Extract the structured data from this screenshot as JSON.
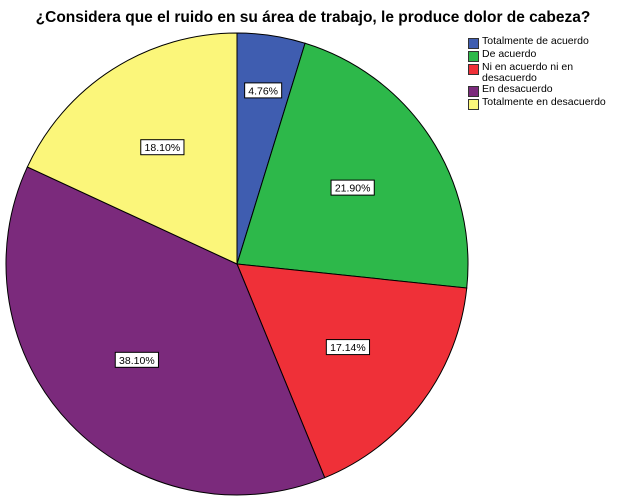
{
  "chart_data": {
    "type": "pie",
    "title": "¿Considera que el ruido en su área de trabajo, le produce dolor de cabeza?",
    "categories": [
      "Totalmente de acuerdo",
      "De acuerdo",
      "Ni en acuerdo ni en desacuerdo",
      "En desacuerdo",
      "Totalmente en desacuerdo"
    ],
    "values": [
      4.76,
      21.9,
      17.14,
      38.1,
      18.1
    ],
    "value_labels": [
      "4.76%",
      "21.90%",
      "17.14%",
      "38.10%",
      "18.10%"
    ],
    "colors": [
      "#3f5db0",
      "#2db84a",
      "#ef3038",
      "#7b2a7c",
      "#fbf67a"
    ],
    "legend": {
      "placement": "top-right",
      "entries": [
        "Totalmente de acuerdo",
        "De acuerdo",
        "Ni en acuerdo ni en desacuerdo",
        "En desacuerdo",
        "Totalmente en desacuerdo"
      ]
    },
    "start": "12 o'clock",
    "direction": "clockwise"
  }
}
